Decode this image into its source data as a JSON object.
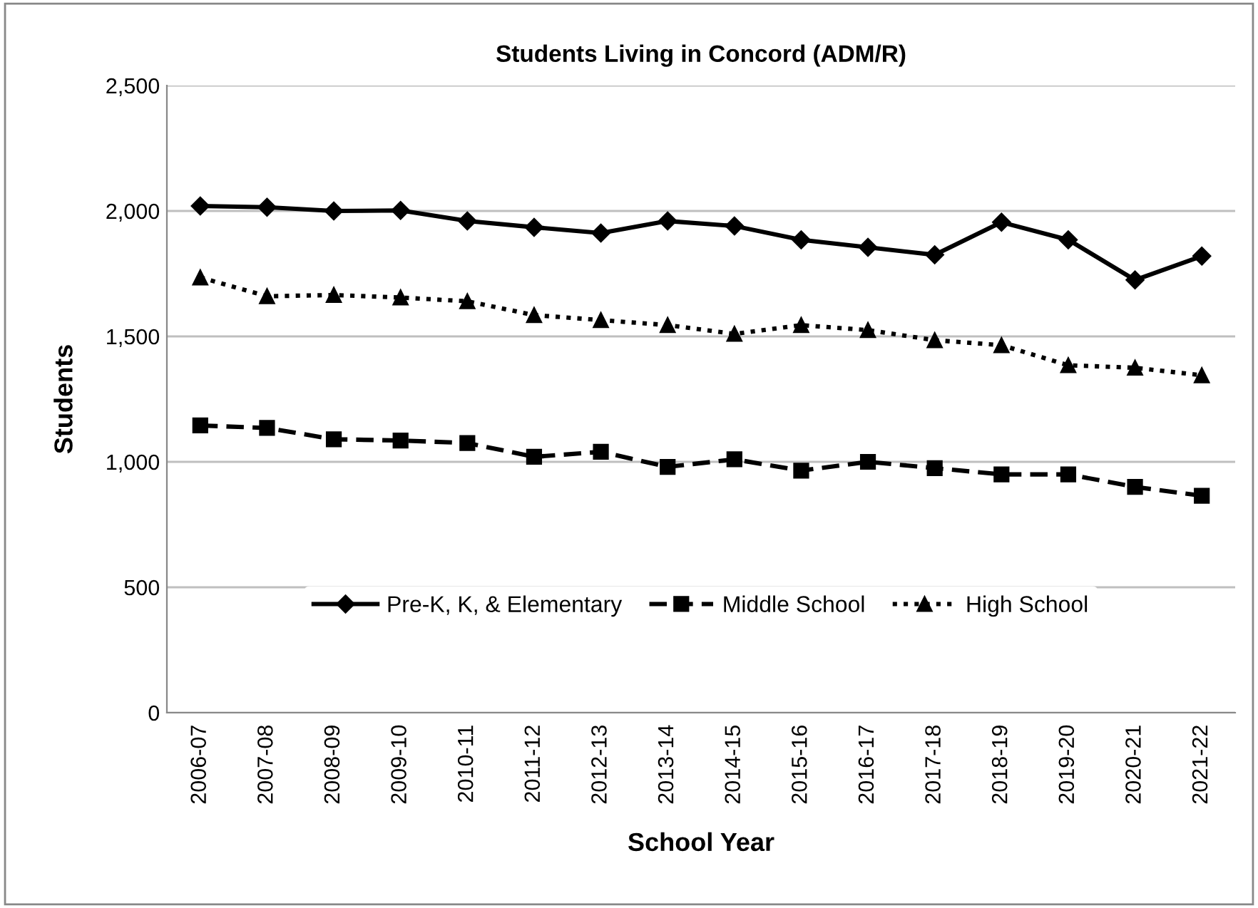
{
  "chart_data": {
    "type": "line",
    "title": "Students Living in Concord (ADM/R)",
    "xlabel": "School Year",
    "ylabel": "Students",
    "categories": [
      "2006-07",
      "2007-08",
      "2008-09",
      "2009-10",
      "2010-11",
      "2011-12",
      "2012-13",
      "2013-14",
      "2014-15",
      "2015-16",
      "2016-17",
      "2017-18",
      "2018-19",
      "2019-20",
      "2020-21",
      "2021-22"
    ],
    "series": [
      {
        "name": "Pre-K, K, & Elementary",
        "color": "#000000",
        "marker": "diamond",
        "line_style": "solid",
        "values": [
          2020,
          2015,
          2000,
          2002,
          1960,
          1935,
          1912,
          1960,
          1940,
          1885,
          1855,
          1825,
          1955,
          1885,
          1725,
          1820
        ]
      },
      {
        "name": "Middle School",
        "color": "#000000",
        "marker": "square",
        "line_style": "dashed",
        "values": [
          1145,
          1135,
          1090,
          1085,
          1075,
          1020,
          1040,
          980,
          1010,
          965,
          1000,
          975,
          950,
          950,
          900,
          865
        ]
      },
      {
        "name": "High School",
        "color": "#000000",
        "marker": "triangle",
        "line_style": "dotted",
        "values": [
          1735,
          1660,
          1665,
          1655,
          1640,
          1585,
          1565,
          1545,
          1510,
          1545,
          1525,
          1485,
          1465,
          1385,
          1375,
          1345
        ]
      }
    ],
    "ylim": [
      0,
      2500
    ],
    "yticks": [
      {
        "value": 0,
        "label": "0"
      },
      {
        "value": 500,
        "label": "500"
      },
      {
        "value": 1000,
        "label": "1,000"
      },
      {
        "value": 1500,
        "label": "1,500"
      },
      {
        "value": 2000,
        "label": "2,000"
      },
      {
        "value": 2500,
        "label": "2,500"
      }
    ],
    "grid": "y",
    "legend": "bottom"
  }
}
